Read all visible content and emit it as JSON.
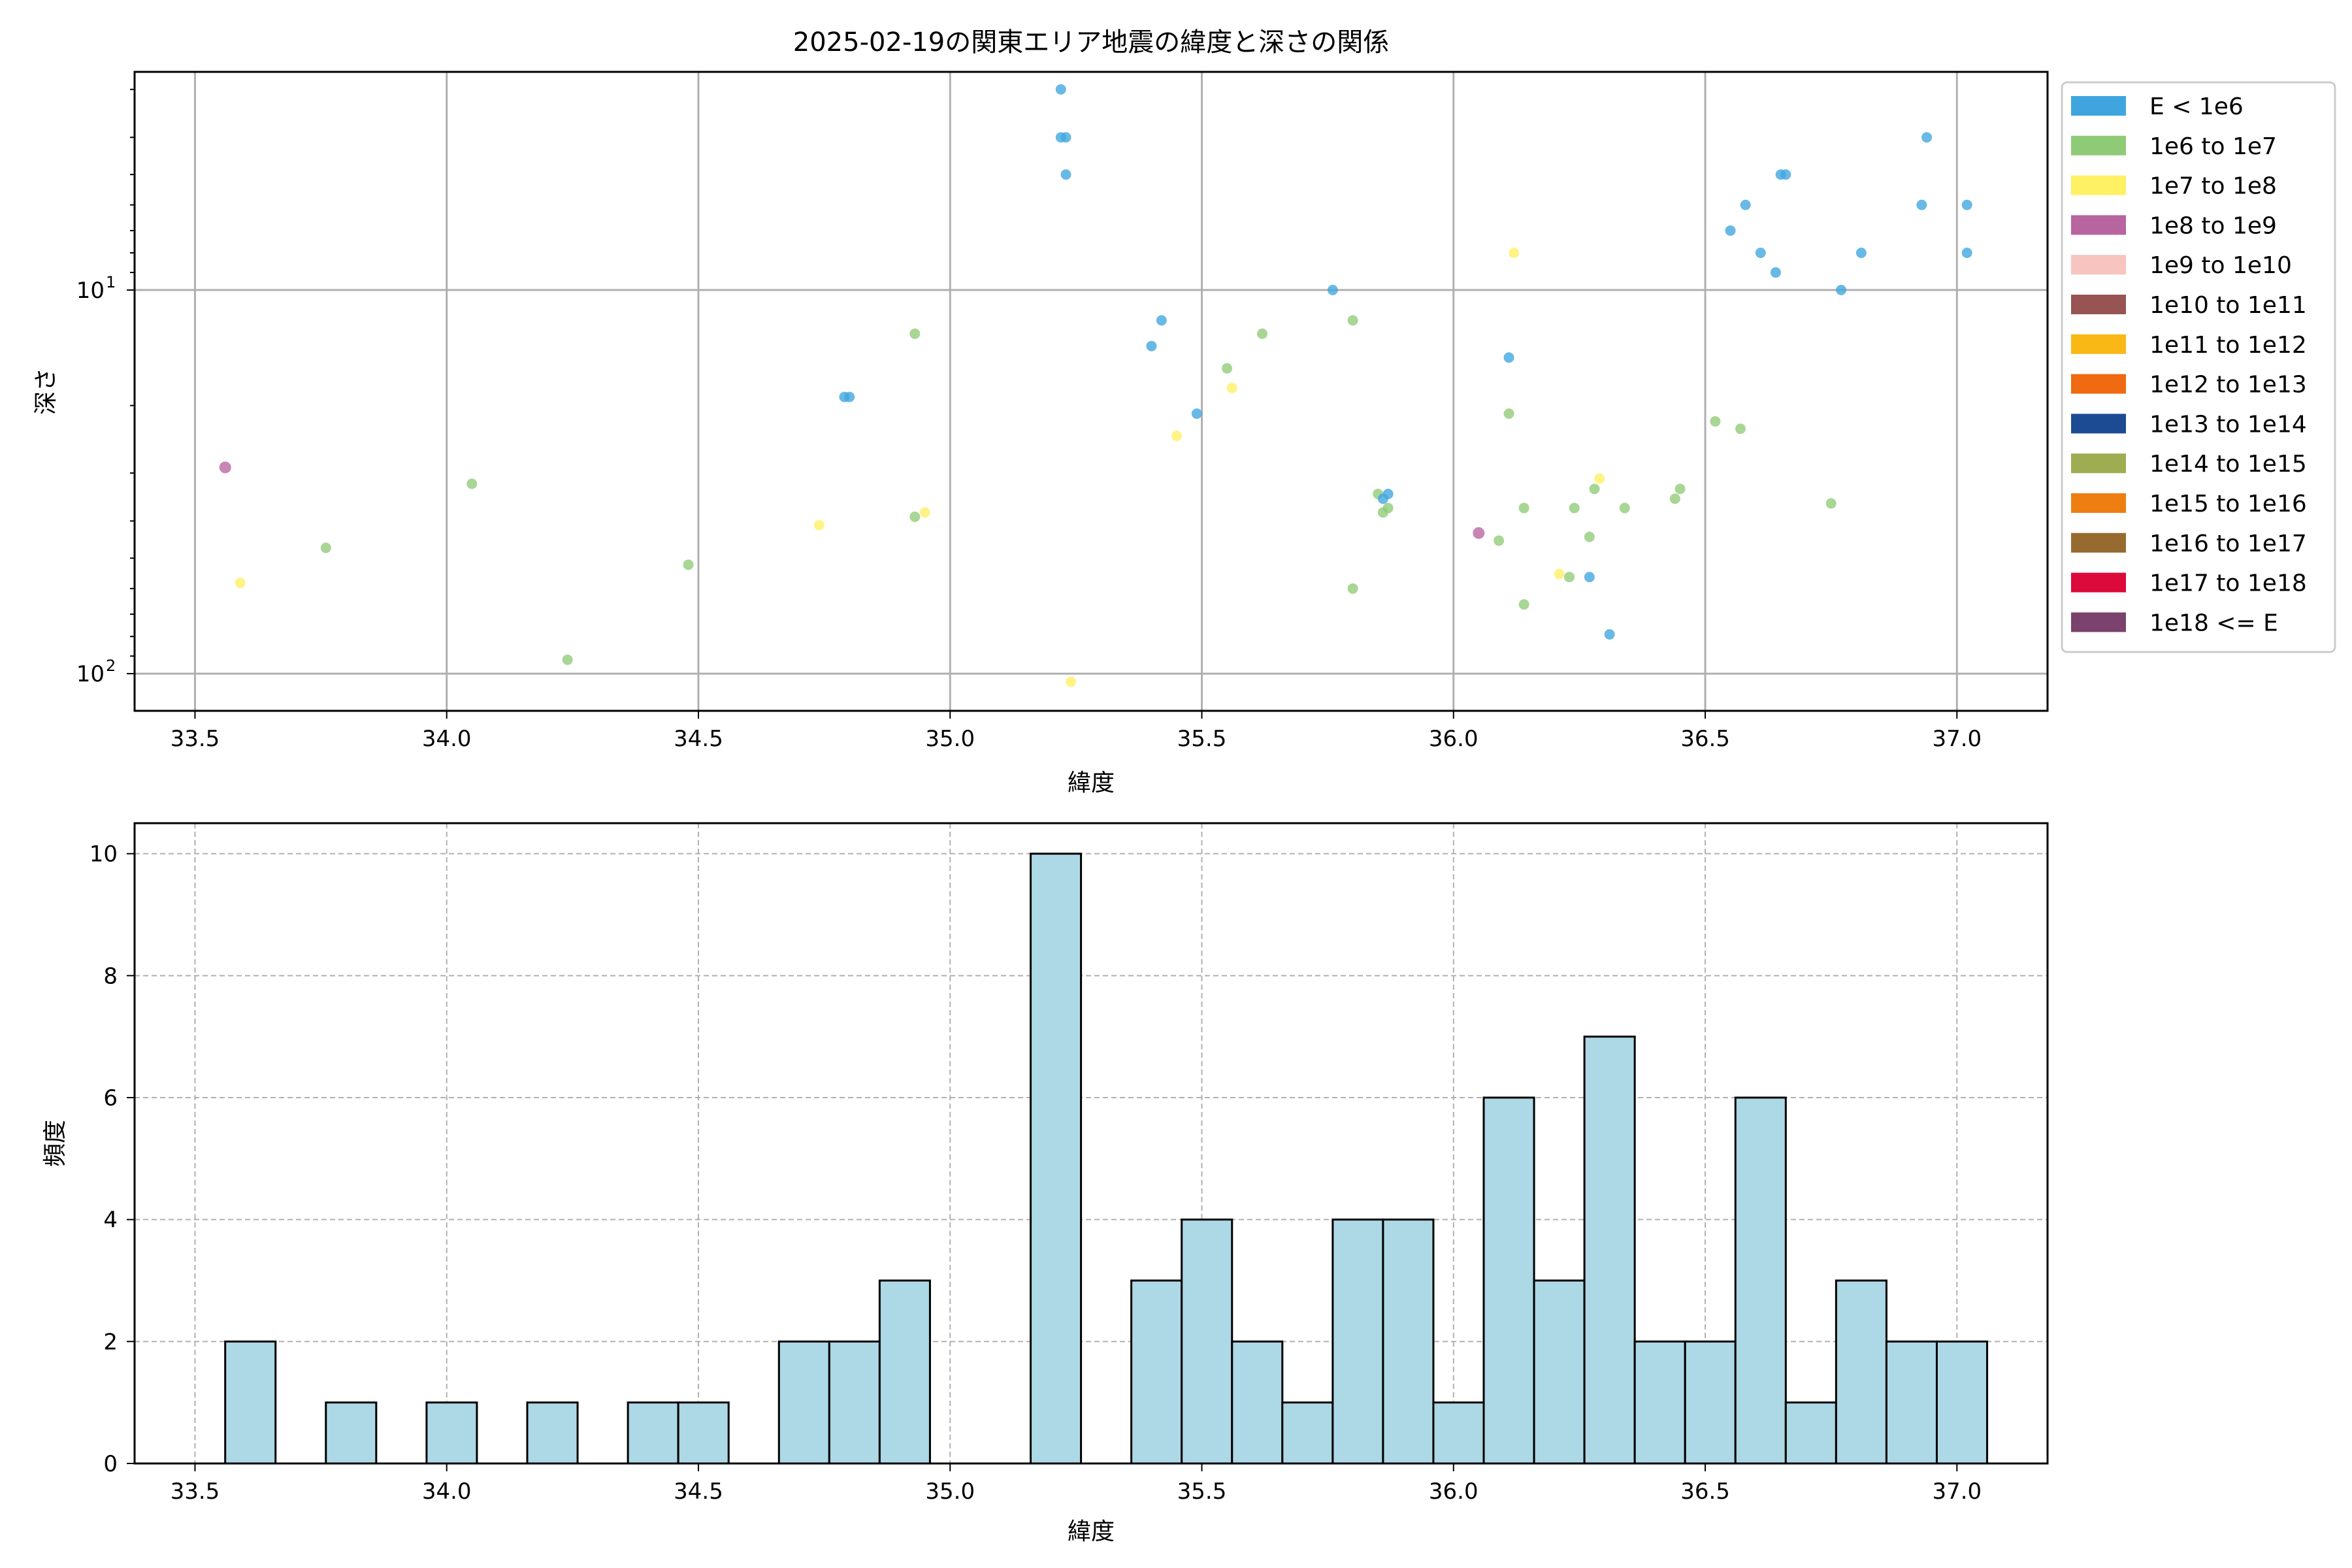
{
  "chart_data": [
    {
      "type": "scatter",
      "title": "2025-02-19の関東エリア地震の緯度と深さの関係",
      "xlabel": "緯度",
      "ylabel": "深さ",
      "xlim": [
        33.38,
        37.18
      ],
      "ylim_log_inverted": [
        125,
        2.7
      ],
      "y_scale": "log",
      "y_inverted": true,
      "grid": true,
      "legend_position": "outside-right",
      "x_ticks": [
        "33.5",
        "34.0",
        "34.5",
        "35.0",
        "35.5",
        "36.0",
        "36.5",
        "37.0"
      ],
      "y_ticks": [
        {
          "value": 10,
          "label": "10",
          "sup": "1"
        },
        {
          "value": 100,
          "label": "10",
          "sup": "2"
        }
      ],
      "legend": [
        {
          "label": "E < 1e6",
          "color": "#3fa5df"
        },
        {
          "label": "1e6 to 1e7",
          "color": "#8fcb77"
        },
        {
          "label": "1e7 to 1e8",
          "color": "#fff064"
        },
        {
          "label": "1e8 to 1e9",
          "color": "#b7649f"
        },
        {
          "label": "1e9 to 1e10",
          "color": "#f7c4bf"
        },
        {
          "label": "1e10 to 1e11",
          "color": "#985452"
        },
        {
          "label": "1e11 to 1e12",
          "color": "#f9b815"
        },
        {
          "label": "1e12 to 1e13",
          "color": "#ef6a10"
        },
        {
          "label": "1e13 to 1e14",
          "color": "#1c4b94"
        },
        {
          "label": "1e14 to 1e15",
          "color": "#9ead52"
        },
        {
          "label": "1e15 to 1e16",
          "color": "#ef7e12"
        },
        {
          "label": "1e16 to 1e17",
          "color": "#976b2f"
        },
        {
          "label": "1e17 to 1e18",
          "color": "#dc0a3b"
        },
        {
          "label": "1e18 <= E",
          "color": "#7a426c"
        }
      ],
      "points": [
        {
          "lat": 33.56,
          "depth": 29,
          "cls": 3
        },
        {
          "lat": 33.59,
          "depth": 58,
          "cls": 2
        },
        {
          "lat": 33.76,
          "depth": 47,
          "cls": 1
        },
        {
          "lat": 34.05,
          "depth": 32,
          "cls": 1
        },
        {
          "lat": 34.24,
          "depth": 92,
          "cls": 1
        },
        {
          "lat": 34.48,
          "depth": 52,
          "cls": 1
        },
        {
          "lat": 34.74,
          "depth": 41,
          "cls": 2
        },
        {
          "lat": 34.79,
          "depth": 19,
          "cls": 0
        },
        {
          "lat": 34.8,
          "depth": 19,
          "cls": 0
        },
        {
          "lat": 34.93,
          "depth": 13,
          "cls": 1
        },
        {
          "lat": 34.93,
          "depth": 39,
          "cls": 1
        },
        {
          "lat": 34.95,
          "depth": 38,
          "cls": 2
        },
        {
          "lat": 35.22,
          "depth": 3,
          "cls": 0
        },
        {
          "lat": 35.22,
          "depth": 4,
          "cls": 0
        },
        {
          "lat": 35.23,
          "depth": 4,
          "cls": 0
        },
        {
          "lat": 35.23,
          "depth": 5,
          "cls": 0
        },
        {
          "lat": 35.24,
          "depth": 105,
          "cls": 2
        },
        {
          "lat": 35.4,
          "depth": 14,
          "cls": 0
        },
        {
          "lat": 35.42,
          "depth": 12,
          "cls": 0
        },
        {
          "lat": 35.45,
          "depth": 24,
          "cls": 2
        },
        {
          "lat": 35.49,
          "depth": 21,
          "cls": 0
        },
        {
          "lat": 35.55,
          "depth": 16,
          "cls": 1
        },
        {
          "lat": 35.56,
          "depth": 18,
          "cls": 2
        },
        {
          "lat": 35.62,
          "depth": 13,
          "cls": 1
        },
        {
          "lat": 35.76,
          "depth": 10,
          "cls": 0
        },
        {
          "lat": 35.8,
          "depth": 12,
          "cls": 1
        },
        {
          "lat": 35.8,
          "depth": 60,
          "cls": 1
        },
        {
          "lat": 35.85,
          "depth": 34,
          "cls": 1
        },
        {
          "lat": 35.86,
          "depth": 35,
          "cls": 0
        },
        {
          "lat": 35.86,
          "depth": 38,
          "cls": 1
        },
        {
          "lat": 35.87,
          "depth": 34,
          "cls": 0
        },
        {
          "lat": 35.87,
          "depth": 37,
          "cls": 1
        },
        {
          "lat": 36.05,
          "depth": 43,
          "cls": 3
        },
        {
          "lat": 36.09,
          "depth": 45,
          "cls": 1
        },
        {
          "lat": 36.11,
          "depth": 21,
          "cls": 1
        },
        {
          "lat": 36.11,
          "depth": 15,
          "cls": 0
        },
        {
          "lat": 36.12,
          "depth": 8,
          "cls": 2
        },
        {
          "lat": 36.14,
          "depth": 37,
          "cls": 1
        },
        {
          "lat": 36.14,
          "depth": 66,
          "cls": 1
        },
        {
          "lat": 36.21,
          "depth": 55,
          "cls": 2
        },
        {
          "lat": 36.23,
          "depth": 56,
          "cls": 1
        },
        {
          "lat": 36.24,
          "depth": 37,
          "cls": 1
        },
        {
          "lat": 36.27,
          "depth": 44,
          "cls": 1
        },
        {
          "lat": 36.27,
          "depth": 56,
          "cls": 0
        },
        {
          "lat": 36.28,
          "depth": 33,
          "cls": 1
        },
        {
          "lat": 36.29,
          "depth": 31,
          "cls": 2
        },
        {
          "lat": 36.31,
          "depth": 79,
          "cls": 0
        },
        {
          "lat": 36.34,
          "depth": 37,
          "cls": 1
        },
        {
          "lat": 36.44,
          "depth": 35,
          "cls": 1
        },
        {
          "lat": 36.45,
          "depth": 33,
          "cls": 1
        },
        {
          "lat": 36.52,
          "depth": 22,
          "cls": 1
        },
        {
          "lat": 36.55,
          "depth": 7,
          "cls": 0
        },
        {
          "lat": 36.57,
          "depth": 23,
          "cls": 1
        },
        {
          "lat": 36.58,
          "depth": 6,
          "cls": 0
        },
        {
          "lat": 36.61,
          "depth": 8,
          "cls": 0
        },
        {
          "lat": 36.64,
          "depth": 9,
          "cls": 0
        },
        {
          "lat": 36.65,
          "depth": 5,
          "cls": 0
        },
        {
          "lat": 36.66,
          "depth": 5,
          "cls": 0
        },
        {
          "lat": 36.75,
          "depth": 36,
          "cls": 1
        },
        {
          "lat": 36.77,
          "depth": 10,
          "cls": 0
        },
        {
          "lat": 36.81,
          "depth": 8,
          "cls": 0
        },
        {
          "lat": 36.93,
          "depth": 6,
          "cls": 0
        },
        {
          "lat": 36.94,
          "depth": 4,
          "cls": 0
        },
        {
          "lat": 37.02,
          "depth": 6,
          "cls": 0
        },
        {
          "lat": 37.02,
          "depth": 8,
          "cls": 0
        }
      ]
    },
    {
      "type": "bar",
      "title": "",
      "xlabel": "緯度",
      "ylabel": "頻度",
      "xlim": [
        33.38,
        37.18
      ],
      "ylim": [
        0,
        10.5
      ],
      "grid": true,
      "bar_color": "#add8e6",
      "x_ticks": [
        "33.5",
        "34.0",
        "34.5",
        "35.0",
        "35.5",
        "36.0",
        "36.5",
        "37.0"
      ],
      "y_ticks": [
        "0",
        "2",
        "4",
        "6",
        "8",
        "10"
      ],
      "bins": [
        {
          "x0": 33.56,
          "x1": 33.66,
          "count": 2
        },
        {
          "x0": 33.76,
          "x1": 33.86,
          "count": 1
        },
        {
          "x0": 33.96,
          "x1": 34.06,
          "count": 1
        },
        {
          "x0": 34.16,
          "x1": 34.26,
          "count": 1
        },
        {
          "x0": 34.36,
          "x1": 34.46,
          "count": 1
        },
        {
          "x0": 34.46,
          "x1": 34.56,
          "count": 1
        },
        {
          "x0": 34.66,
          "x1": 34.76,
          "count": 2
        },
        {
          "x0": 34.76,
          "x1": 34.86,
          "count": 2
        },
        {
          "x0": 34.86,
          "x1": 34.96,
          "count": 3
        },
        {
          "x0": 35.16,
          "x1": 35.26,
          "count": 10
        },
        {
          "x0": 35.36,
          "x1": 35.46,
          "count": 3
        },
        {
          "x0": 35.46,
          "x1": 35.56,
          "count": 4
        },
        {
          "x0": 35.56,
          "x1": 35.66,
          "count": 2
        },
        {
          "x0": 35.66,
          "x1": 35.76,
          "count": 1
        },
        {
          "x0": 35.76,
          "x1": 35.86,
          "count": 4
        },
        {
          "x0": 35.86,
          "x1": 35.96,
          "count": 4
        },
        {
          "x0": 35.96,
          "x1": 36.06,
          "count": 1
        },
        {
          "x0": 36.06,
          "x1": 36.16,
          "count": 6
        },
        {
          "x0": 36.16,
          "x1": 36.26,
          "count": 3
        },
        {
          "x0": 36.26,
          "x1": 36.36,
          "count": 7
        },
        {
          "x0": 36.36,
          "x1": 36.46,
          "count": 2
        },
        {
          "x0": 36.46,
          "x1": 36.56,
          "count": 2
        },
        {
          "x0": 36.56,
          "x1": 36.66,
          "count": 6
        },
        {
          "x0": 36.66,
          "x1": 36.76,
          "count": 1
        },
        {
          "x0": 36.76,
          "x1": 36.86,
          "count": 3
        },
        {
          "x0": 36.86,
          "x1": 36.96,
          "count": 2
        },
        {
          "x0": 36.96,
          "x1": 37.06,
          "count": 2
        }
      ]
    }
  ]
}
